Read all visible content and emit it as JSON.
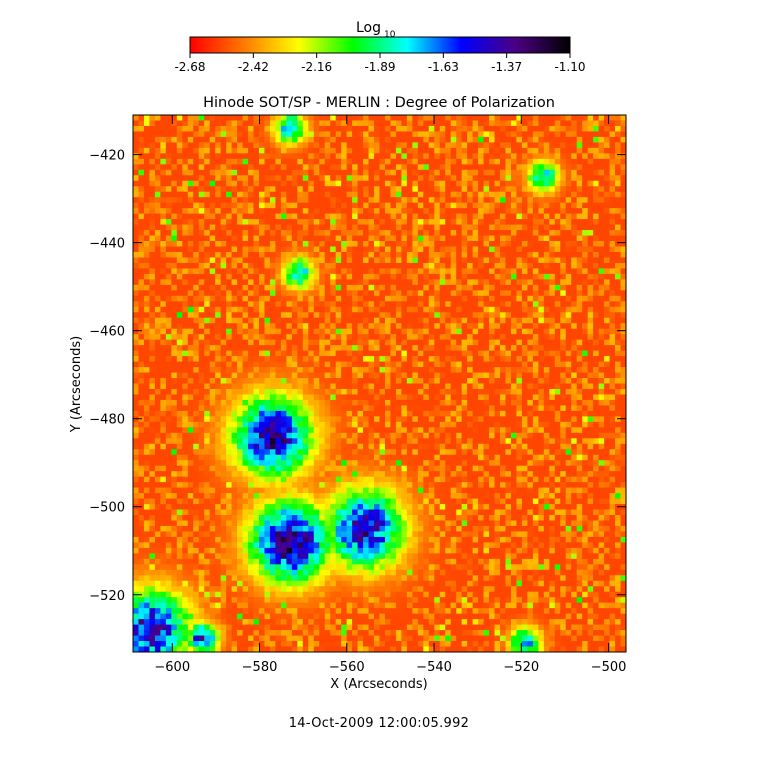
{
  "chart_data": {
    "type": "heatmap",
    "title": "Hinode SOT/SP - MERLIN : Degree of Polarization",
    "xlabel": "X (Arcseconds)",
    "ylabel": "Y (Arcseconds)",
    "xlim": [
      -609,
      -496
    ],
    "ylim": [
      -533,
      -411
    ],
    "x_ticks": [
      -600,
      -580,
      -560,
      -540,
      -520,
      -500
    ],
    "y_ticks": [
      -420,
      -440,
      -460,
      -480,
      -500,
      -520
    ],
    "colorbar": {
      "label": "Log",
      "label_subscript": "10",
      "range": [
        -2.68,
        -1.1
      ],
      "ticks": [
        "-2.68",
        "-2.42",
        "-2.16",
        "-1.89",
        "-1.63",
        "-1.37",
        "-1.10"
      ],
      "colormap": [
        "#ff0000",
        "#ff7a00",
        "#ffff00",
        "#00ff00",
        "#00ffff",
        "#0000ff",
        "#4b0082",
        "#000000"
      ]
    },
    "background_level": -2.55,
    "features": [
      {
        "region": "polarized patch",
        "center": [
          -573,
          -508
        ],
        "peak_level": -1.25
      },
      {
        "region": "polarized patch",
        "center": [
          -577,
          -484
        ],
        "peak_level": -1.35
      },
      {
        "region": "polarized patch",
        "center": [
          -556,
          -505
        ],
        "peak_level": -1.4
      },
      {
        "region": "polarized patch",
        "center": [
          -605,
          -528
        ],
        "peak_level": -1.4
      },
      {
        "region": "polarized patch",
        "center": [
          -593,
          -530
        ],
        "peak_level": -1.45
      },
      {
        "region": "polarized patch",
        "center": [
          -571,
          -447
        ],
        "peak_level": -1.7
      },
      {
        "region": "polarized patch",
        "center": [
          -573,
          -414
        ],
        "peak_level": -1.65
      },
      {
        "region": "polarized patch",
        "center": [
          -515,
          -425
        ],
        "peak_level": -1.7
      },
      {
        "region": "polarized patch",
        "center": [
          -519,
          -531
        ],
        "peak_level": -1.65
      }
    ]
  },
  "timestamp": "14-Oct-2009 12:00:05.992"
}
